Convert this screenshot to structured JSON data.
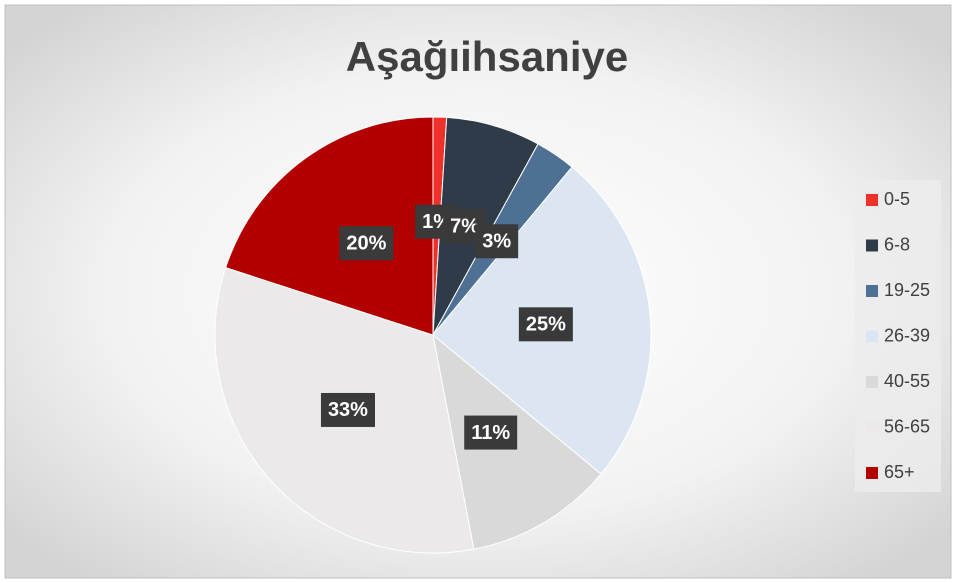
{
  "chart_data": {
    "type": "pie",
    "title": "Aşağıihsaniye",
    "categories": [
      "0-5",
      "6-8",
      "19-25",
      "26-39",
      "40-55",
      "56-65",
      "65+"
    ],
    "values": [
      1,
      7,
      3,
      25,
      11,
      33,
      20
    ],
    "value_labels": [
      "1%",
      "7%",
      "3%",
      "25%",
      "11%",
      "33%",
      "20%"
    ],
    "colors": [
      "#f0302a",
      "#2f3b49",
      "#4d7094",
      "#dce6f2",
      "#d9d9d9",
      "#ebe9e9",
      "#b20000"
    ],
    "legend": "right"
  }
}
